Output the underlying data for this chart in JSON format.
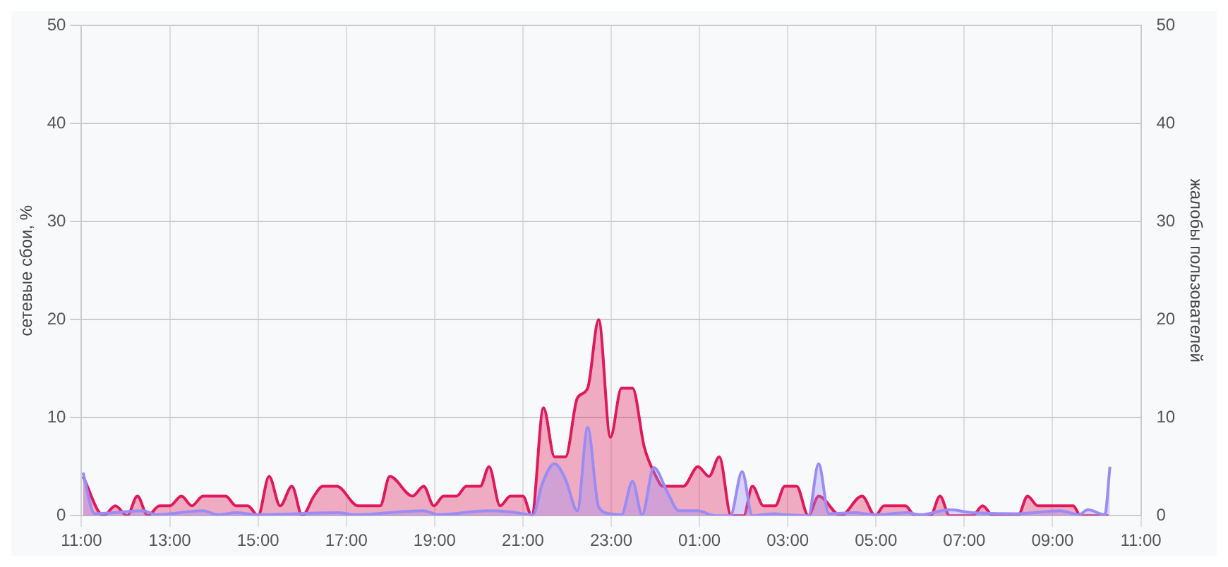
{
  "chart_data": {
    "type": "area",
    "ylabel": "сетевые сбои, %",
    "y2label": "жалобы пользователей",
    "xlim": [
      "--01-01T11:00",
      "--01-02T11:00"
    ],
    "xticks": [
      {
        "value": "--01-01T11:00",
        "label": "11:00"
      },
      {
        "value": "--01-01T13:00",
        "label": "13:00"
      },
      {
        "value": "--01-01T15:00",
        "label": "15:00"
      },
      {
        "value": "--01-01T17:00",
        "label": "17:00"
      },
      {
        "value": "--01-01T19:00",
        "label": "19:00"
      },
      {
        "value": "--01-01T21:00",
        "label": "21:00"
      },
      {
        "value": "--01-01T23:00",
        "label": "23:00"
      },
      {
        "value": "--01-02T01:00",
        "label": "01:00"
      },
      {
        "value": "--01-02T03:00",
        "label": "03:00"
      },
      {
        "value": "--01-02T05:00",
        "label": "05:00"
      },
      {
        "value": "--01-02T07:00",
        "label": "07:00"
      },
      {
        "value": "--01-02T09:00",
        "label": "09:00"
      },
      {
        "value": "--01-02T11:00",
        "label": "11:00"
      }
    ],
    "ylim": [
      0,
      50
    ],
    "yticks": [
      0,
      10,
      20,
      30,
      40,
      50
    ],
    "y2lim": [
      0,
      50
    ],
    "y2ticks": [
      0,
      10,
      20,
      30,
      40,
      50
    ],
    "grid": true,
    "series": [
      {
        "color": "#e0195a",
        "x": [
          "--01-01T11:02",
          "--01-01T11:30",
          "--01-01T11:46",
          "--01-01T12:02",
          "--01-01T12:16",
          "--01-01T12:30",
          "--01-01T12:46",
          "--01-01T13:00",
          "--01-01T13:16",
          "--01-01T13:30",
          "--01-01T13:45",
          "--01-01T14:16",
          "--01-01T14:30",
          "--01-01T14:46",
          "--01-01T15:00",
          "--01-01T15:15",
          "--01-01T15:30",
          "--01-01T15:46",
          "--01-01T16:00",
          "--01-01T16:16",
          "--01-01T16:28",
          "--01-01T16:47",
          "--01-01T17:16",
          "--01-01T17:46",
          "--01-01T17:59",
          "--01-01T18:30",
          "--01-01T18:45",
          "--01-01T18:59",
          "--01-01T19:12",
          "--01-01T19:30",
          "--01-01T19:43",
          "--01-01T20:02",
          "--01-01T20:14",
          "--01-01T20:29",
          "--01-01T20:43",
          "--01-01T21:00",
          "--01-01T21:12",
          "--01-01T21:28",
          "--01-01T21:43",
          "--01-01T21:58",
          "--01-01T22:14",
          "--01-01T22:28",
          "--01-01T22:43",
          "--01-01T22:59",
          "--01-01T23:14",
          "--01-01T23:29",
          "--01-01T23:45",
          "--01-02T00:01",
          "--01-02T00:10",
          "--01-02T00:38",
          "--01-02T00:58",
          "--01-02T01:13",
          "--01-02T01:27",
          "--01-02T01:43",
          "--01-02T02:00",
          "--01-02T02:12",
          "--01-02T02:27",
          "--01-02T02:43",
          "--01-02T02:56",
          "--01-02T03:12",
          "--01-02T03:28",
          "--01-02T03:42",
          "--01-02T04:12",
          "--01-02T04:41",
          "--01-02T04:59",
          "--01-02T05:11",
          "--01-02T05:40",
          "--01-02T05:53",
          "--01-02T06:14",
          "--01-02T06:27",
          "--01-02T06:40",
          "--01-02T07:11",
          "--01-02T07:25",
          "--01-02T07:39",
          "--01-02T08:13",
          "--01-02T08:26",
          "--01-02T08:40",
          "--01-02T09:28",
          "--01-02T09:38",
          "--01-02T10:16"
        ],
        "values": [
          4,
          0,
          1,
          0,
          2,
          0,
          1,
          1,
          2,
          1,
          2,
          2,
          1,
          1,
          0,
          4,
          1,
          3,
          0,
          2,
          3,
          3,
          1,
          1,
          4,
          2,
          3,
          1,
          2,
          2,
          3,
          3,
          5,
          1,
          2,
          2,
          0,
          11,
          6,
          6,
          12,
          13,
          20,
          8,
          13,
          13,
          7,
          4,
          3,
          3,
          5,
          4,
          6,
          0,
          0,
          3,
          1,
          1,
          3,
          3,
          0,
          2,
          0,
          2,
          0,
          1,
          1,
          0,
          0,
          2,
          0,
          0,
          1,
          0,
          0,
          2,
          1,
          1,
          0,
          0
        ]
      },
      {
        "color": "#9a8cf5",
        "axis": "y2",
        "x": [
          "--01-01T11:02",
          "--01-01T11:18",
          "--01-01T12:24",
          "--01-01T12:42",
          "--01-01T13:45",
          "--01-01T14:06",
          "--01-01T14:30",
          "--01-01T15:00",
          "--01-01T16:48",
          "--01-01T17:12",
          "--01-01T18:45",
          "--01-01T19:06",
          "--01-01T20:12",
          "--01-01T20:42",
          "--01-01T21:14",
          "--01-01T21:26",
          "--01-01T21:43",
          "--01-01T21:58",
          "--01-01T22:14",
          "--01-01T22:28",
          "--01-01T22:43",
          "--01-01T22:59",
          "--01-01T23:14",
          "--01-01T23:29",
          "--01-01T23:42",
          "--01-01T23:58",
          "--01-02T00:17",
          "--01-02T00:32",
          "--01-02T00:58",
          "--01-02T01:21",
          "--01-02T01:42",
          "--01-02T01:58",
          "--01-02T02:12",
          "--01-02T02:42",
          "--01-02T02:54",
          "--01-02T03:28",
          "--01-02T03:42",
          "--01-02T03:56",
          "--01-02T04:30",
          "--01-02T05:00",
          "--01-02T05:42",
          "--01-02T06:00",
          "--01-02T06:40",
          "--01-02T07:11",
          "--01-02T08:12",
          "--01-02T09:10",
          "--01-02T09:36",
          "--01-02T09:48",
          "--01-02T10:11",
          "--01-02T10:18"
        ],
        "values": [
          4.4,
          0.2,
          0.5,
          0.1,
          0.5,
          0.1,
          0.3,
          0.1,
          0.3,
          0.1,
          0.5,
          0.1,
          0.5,
          0.4,
          0.1,
          3.2,
          5.3,
          3.7,
          0.5,
          9,
          0.9,
          0.2,
          0.1,
          3.5,
          0.1,
          4.9,
          2.3,
          0.5,
          0.5,
          0,
          0,
          4.5,
          0,
          0.2,
          0.1,
          0,
          5.3,
          0.2,
          0.3,
          0.1,
          0.3,
          0.1,
          0.6,
          0.3,
          0.2,
          0.5,
          0.1,
          0.6,
          0.1,
          5
        ]
      }
    ]
  }
}
